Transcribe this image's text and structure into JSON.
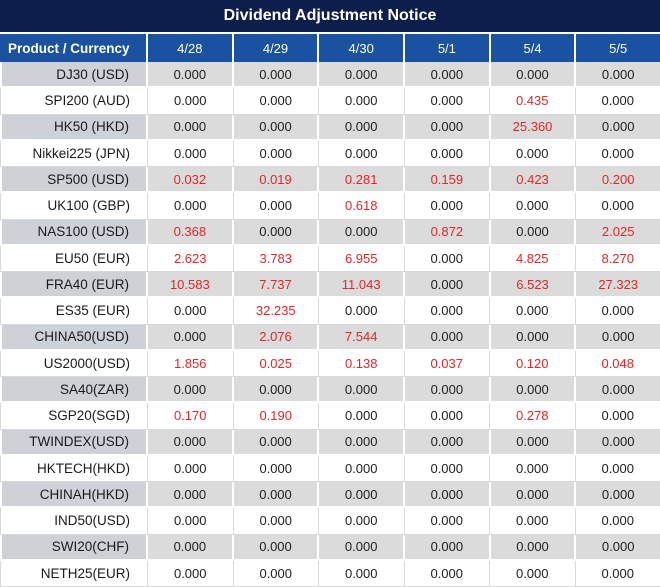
{
  "title": "Dividend Adjustment Notice",
  "header": {
    "product_label": "Product / Currency",
    "dates": [
      "4/28",
      "4/29",
      "4/30",
      "5/1",
      "5/4",
      "5/5"
    ]
  },
  "colors": {
    "title_bg": "#0D1E4C",
    "header_bg": "#1A51A0",
    "header_text": "#FFFFFF",
    "row_gray_product": "#CED1D5",
    "row_gray_value": "#DBDBDB",
    "row_white": "#FFFFFF",
    "value_text": "#212121",
    "red_text": "#E52528"
  },
  "rows": [
    {
      "product": "DJ30 (USD)",
      "values": [
        "0.000",
        "0.000",
        "0.000",
        "0.000",
        "0.000",
        "0.000"
      ],
      "red": []
    },
    {
      "product": "SPI200 (AUD)",
      "values": [
        "0.000",
        "0.000",
        "0.000",
        "0.000",
        "0.435",
        "0.000"
      ],
      "red": [
        4
      ]
    },
    {
      "product": "HK50 (HKD)",
      "values": [
        "0.000",
        "0.000",
        "0.000",
        "0.000",
        "25.360",
        "0.000"
      ],
      "red": [
        4
      ]
    },
    {
      "product": "Nikkei225 (JPN)",
      "values": [
        "0.000",
        "0.000",
        "0.000",
        "0.000",
        "0.000",
        "0.000"
      ],
      "red": []
    },
    {
      "product": "SP500 (USD)",
      "values": [
        "0.032",
        "0.019",
        "0.281",
        "0.159",
        "0.423",
        "0.200"
      ],
      "red": [
        0,
        1,
        2,
        3,
        4,
        5
      ]
    },
    {
      "product": "UK100 (GBP)",
      "values": [
        "0.000",
        "0.000",
        "0.618",
        "0.000",
        "0.000",
        "0.000"
      ],
      "red": [
        2
      ]
    },
    {
      "product": "NAS100 (USD)",
      "values": [
        "0.368",
        "0.000",
        "0.000",
        "0.872",
        "0.000",
        "2.025"
      ],
      "red": [
        0,
        3,
        5
      ]
    },
    {
      "product": "EU50 (EUR)",
      "values": [
        "2.623",
        "3.783",
        "6.955",
        "0.000",
        "4.825",
        "8.270"
      ],
      "red": [
        0,
        1,
        2,
        4,
        5
      ]
    },
    {
      "product": "FRA40 (EUR)",
      "values": [
        "10.583",
        "7.737",
        "11.043",
        "0.000",
        "6.523",
        "27.323"
      ],
      "red": [
        0,
        1,
        2,
        4,
        5
      ]
    },
    {
      "product": "ES35 (EUR)",
      "values": [
        "0.000",
        "32.235",
        "0.000",
        "0.000",
        "0.000",
        "0.000"
      ],
      "red": [
        1
      ]
    },
    {
      "product": "CHINA50(USD)",
      "values": [
        "0.000",
        "2.076",
        "7.544",
        "0.000",
        "0.000",
        "0.000"
      ],
      "red": [
        1,
        2
      ]
    },
    {
      "product": "US2000(USD)",
      "values": [
        "1.856",
        "0.025",
        "0.138",
        "0.037",
        "0.120",
        "0.048"
      ],
      "red": [
        0,
        1,
        2,
        3,
        4,
        5
      ]
    },
    {
      "product": "SA40(ZAR)",
      "values": [
        "0.000",
        "0.000",
        "0.000",
        "0.000",
        "0.000",
        "0.000"
      ],
      "red": []
    },
    {
      "product": "SGP20(SGD)",
      "values": [
        "0.170",
        "0.190",
        "0.000",
        "0.000",
        "0.278",
        "0.000"
      ],
      "red": [
        0,
        1,
        4
      ]
    },
    {
      "product": "TWINDEX(USD)",
      "values": [
        "0.000",
        "0.000",
        "0.000",
        "0.000",
        "0.000",
        "0.000"
      ],
      "red": []
    },
    {
      "product": "HKTECH(HKD)",
      "values": [
        "0.000",
        "0.000",
        "0.000",
        "0.000",
        "0.000",
        "0.000"
      ],
      "red": []
    },
    {
      "product": "CHINAH(HKD)",
      "values": [
        "0.000",
        "0.000",
        "0.000",
        "0.000",
        "0.000",
        "0.000"
      ],
      "red": []
    },
    {
      "product": "IND50(USD)",
      "values": [
        "0.000",
        "0.000",
        "0.000",
        "0.000",
        "0.000",
        "0.000"
      ],
      "red": []
    },
    {
      "product": "SWI20(CHF)",
      "values": [
        "0.000",
        "0.000",
        "0.000",
        "0.000",
        "0.000",
        "0.000"
      ],
      "red": []
    },
    {
      "product": "NETH25(EUR)",
      "values": [
        "0.000",
        "0.000",
        "0.000",
        "0.000",
        "0.000",
        "0.000"
      ],
      "red": []
    }
  ]
}
